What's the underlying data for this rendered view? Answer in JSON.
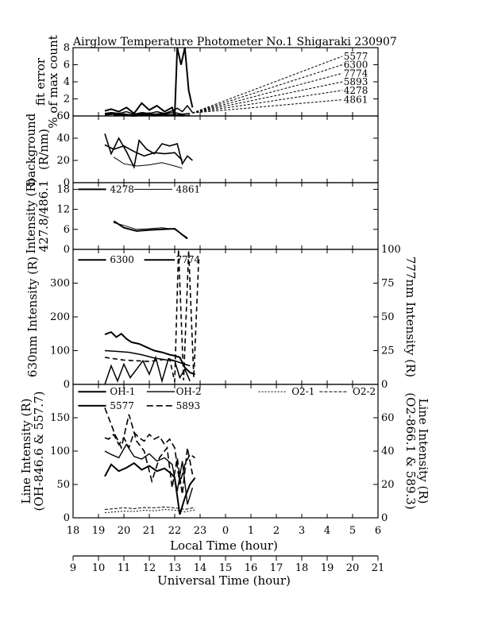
{
  "title": "Airglow Temperature Photometer No.1  Shigaraki  230907",
  "chart_data": [
    {
      "panel": "fit_error",
      "type": "line",
      "ylabel_lines": [
        "fit error",
        "% of max count"
      ],
      "ylim": [
        0,
        8
      ],
      "yticks": [
        0,
        2,
        4,
        6,
        8
      ],
      "series": [
        {
          "name": "5577",
          "x": [
            19.25,
            19.5,
            19.8,
            20.1,
            20.4,
            20.7,
            21.0,
            21.3,
            21.6,
            21.9,
            22.0,
            22.1,
            22.25,
            22.4,
            22.55,
            22.7
          ],
          "y": [
            0.6,
            0.8,
            0.5,
            1.0,
            0.3,
            1.5,
            0.7,
            1.2,
            0.5,
            1.0,
            -1.0,
            8.0,
            6.0,
            8.0,
            3.0,
            1.0
          ]
        },
        {
          "name": "6300",
          "x": [
            19.25,
            19.5,
            19.8,
            20.1,
            20.4,
            20.7,
            21.0,
            21.3,
            21.6,
            21.9,
            22.1,
            22.3,
            22.5,
            22.7
          ],
          "y": [
            0.3,
            0.4,
            0.3,
            0.5,
            0.2,
            0.4,
            0.3,
            0.5,
            0.3,
            0.6,
            0.9,
            0.5,
            1.2,
            0.4
          ]
        },
        {
          "name": "7774",
          "x": [
            19.25,
            19.6,
            20.0,
            20.4,
            20.8,
            21.2,
            21.6,
            22.0,
            22.3,
            22.6
          ],
          "y": [
            0.2,
            0.3,
            0.2,
            0.1,
            0.3,
            0.2,
            0.3,
            0.4,
            0.2,
            0.3
          ]
        },
        {
          "name": "5893",
          "x": [
            19.25,
            19.6,
            20.0,
            20.3,
            20.5,
            20.8,
            21.2,
            21.5,
            21.7,
            22.0,
            22.3,
            22.6
          ],
          "y": [
            0.1,
            0.2,
            0.1,
            0.0,
            -1.5,
            0.2,
            0.1,
            0.3,
            -1.2,
            0.2,
            -1.5,
            0.1
          ]
        },
        {
          "name": "4278",
          "x": [
            19.6,
            20.0,
            20.4,
            20.8,
            21.2,
            21.6,
            22.0,
            22.4
          ],
          "y": [
            0.1,
            0.2,
            0.1,
            0.2,
            0.1,
            0.2,
            0.1,
            0.2
          ]
        },
        {
          "name": "4861",
          "x": [
            19.6,
            20.0,
            20.4,
            20.8,
            21.2,
            21.6,
            22.0,
            22.4
          ],
          "y": [
            0.0,
            0.1,
            0.0,
            0.1,
            0.0,
            0.1,
            0.0,
            0.1
          ]
        }
      ],
      "legend": [
        {
          "label": "5577",
          "y_end": 7.0
        },
        {
          "label": "6300",
          "y_end": 6.0
        },
        {
          "label": "7774",
          "y_end": 5.0
        },
        {
          "label": "5893",
          "y_end": 4.0
        },
        {
          "label": "4278",
          "y_end": 3.0
        },
        {
          "label": "4861",
          "y_end": 1.9
        }
      ]
    },
    {
      "panel": "background",
      "type": "line",
      "ylabel_lines": [
        "background",
        "(R/nm)"
      ],
      "ylim": [
        0,
        60
      ],
      "yticks": [
        0,
        20,
        40,
        60
      ],
      "series": [
        {
          "x": [
            19.25,
            19.5,
            19.8,
            20.1,
            20.4,
            20.6,
            20.9,
            21.2,
            21.5,
            21.8,
            22.1,
            22.3,
            22.5,
            22.7
          ],
          "y": [
            44,
            26,
            40,
            28,
            14,
            38,
            30,
            26,
            35,
            33,
            35,
            17,
            24,
            20
          ]
        },
        {
          "x": [
            19.25,
            19.6,
            20.0,
            20.4,
            20.8,
            21.2,
            21.6,
            22.0,
            22.3
          ],
          "y": [
            34,
            30,
            33,
            28,
            24,
            27,
            26,
            27,
            20
          ]
        },
        {
          "x": [
            19.6,
            20.0,
            20.5,
            21.0,
            21.5,
            22.0,
            22.3
          ],
          "y": [
            23,
            17,
            15,
            16,
            18,
            15,
            13
          ]
        }
      ]
    },
    {
      "panel": "blue_lines",
      "type": "line",
      "ylabel_lines": [
        "Intensity (R)",
        "427.8/486.1"
      ],
      "ylim": [
        0,
        20
      ],
      "yticks": [
        0,
        6,
        12,
        18
      ],
      "series": [
        {
          "name": "4278",
          "x": [
            19.6,
            20.0,
            20.5,
            21.0,
            21.5,
            22.0,
            22.5
          ],
          "y": [
            8.5,
            6.5,
            5.5,
            5.8,
            6.0,
            6.2,
            3.2
          ]
        },
        {
          "name": "4861",
          "x": [
            19.6,
            20.0,
            20.5,
            21.0,
            21.5,
            22.0,
            22.5
          ],
          "y": [
            8.0,
            7.2,
            6.0,
            6.2,
            6.5,
            6.0,
            3.5
          ]
        }
      ]
    },
    {
      "panel": "oi_red_and_7774",
      "type": "line",
      "ylabel_left": "630nm Intensity (R)",
      "ylabel_right": "777nm Intensity (R)",
      "ylim_left": [
        0,
        400
      ],
      "yticks_left": [
        0,
        100,
        200,
        300
      ],
      "ylim_right": [
        0,
        100
      ],
      "yticks_right": [
        0,
        25,
        50,
        75,
        100
      ],
      "series": [
        {
          "name": "6300",
          "x": [
            19.25,
            19.5,
            19.7,
            19.9,
            20.1,
            20.3,
            20.6,
            20.9,
            21.2,
            21.5,
            21.8,
            22.0,
            22.2,
            22.4,
            22.6,
            22.8
          ],
          "y": [
            148,
            155,
            140,
            150,
            135,
            125,
            120,
            110,
            100,
            95,
            88,
            85,
            80,
            50,
            35,
            30
          ]
        },
        {
          "name": "6300b",
          "x": [
            19.25,
            19.7,
            20.2,
            20.7,
            21.2,
            21.7,
            22.0,
            22.3,
            22.6
          ],
          "y": [
            100,
            98,
            95,
            88,
            78,
            72,
            70,
            62,
            55
          ]
        },
        {
          "name": "6300c",
          "x": [
            19.25,
            19.5,
            19.75,
            20.0,
            20.25,
            20.5,
            20.75,
            21.0,
            21.25,
            21.5,
            21.75,
            22.0,
            22.2,
            22.4,
            22.6
          ],
          "y": [
            0,
            55,
            10,
            60,
            20,
            45,
            70,
            30,
            80,
            10,
            75,
            70,
            20,
            45,
            10
          ]
        },
        {
          "name": "7774",
          "axis": "right",
          "x": [
            19.25,
            20.0,
            21.0,
            21.8,
            22.0,
            22.15,
            22.35,
            22.55,
            22.75,
            22.95
          ],
          "y": [
            20,
            18,
            17,
            19,
            2,
            100,
            3,
            99,
            5,
            95
          ]
        }
      ],
      "legend": [
        "6300",
        "7774"
      ]
    },
    {
      "panel": "oh_o2_lines",
      "type": "line",
      "ylabel_left_lines": [
        "Line Intensity (R)",
        "(OH-846.6 & 557.7)"
      ],
      "ylabel_right_lines": [
        "Line Intensity (R)",
        "(O2-866.1 & 589.3)"
      ],
      "ylim_left": [
        0,
        200
      ],
      "yticks_left": [
        0,
        50,
        100,
        150
      ],
      "ylim_right": [
        0,
        80
      ],
      "yticks_right": [
        0,
        20,
        40,
        60
      ],
      "series": [
        {
          "name": "OH-1",
          "x": [
            19.25,
            19.5,
            19.8,
            20.1,
            20.4,
            20.7,
            21.0,
            21.3,
            21.6,
            21.9,
            22.0,
            22.2,
            22.4,
            22.6,
            22.8
          ],
          "y": [
            62,
            80,
            70,
            75,
            82,
            72,
            78,
            70,
            74,
            65,
            60,
            5,
            30,
            50,
            60
          ]
        },
        {
          "name": "OH-2",
          "x": [
            19.25,
            19.5,
            19.8,
            20.1,
            20.4,
            20.7,
            21.0,
            21.3,
            21.6,
            21.9,
            22.1,
            22.3,
            22.5,
            22.7
          ],
          "y": [
            100,
            95,
            90,
            110,
            92,
            88,
            96,
            85,
            90,
            80,
            40,
            85,
            20,
            45
          ]
        },
        {
          "name": "5577",
          "x": [
            19.25,
            19.4,
            19.6,
            19.8,
            20.0,
            20.2,
            20.4,
            20.6,
            20.8,
            21.0,
            21.2,
            21.4,
            21.6,
            21.8,
            22.0,
            22.2,
            22.4,
            22.6,
            22.8
          ],
          "y": [
            120,
            118,
            125,
            110,
            120,
            105,
            128,
            120,
            115,
            125,
            118,
            122,
            110,
            118,
            105,
            50,
            80,
            95,
            90
          ]
        },
        {
          "name": "5893",
          "axis": "right",
          "x": [
            19.25,
            19.45,
            19.65,
            19.9,
            20.2,
            20.5,
            20.8,
            21.1,
            21.4,
            21.7,
            21.9,
            22.1,
            22.3,
            22.5,
            22.7
          ],
          "y": [
            66,
            58,
            50,
            42,
            62,
            46,
            40,
            22,
            36,
            42,
            18,
            36,
            14,
            42,
            26
          ]
        },
        {
          "name": "O2-1",
          "axis": "right",
          "x": [
            19.25,
            19.6,
            20.0,
            20.4,
            20.8,
            21.2,
            21.6,
            22.0,
            22.4,
            22.8
          ],
          "y": [
            3,
            3.5,
            4,
            3.8,
            4.5,
            4.2,
            5,
            4.6,
            3.5,
            4.8
          ]
        },
        {
          "name": "O2-2",
          "axis": "right",
          "x": [
            19.25,
            19.6,
            20.0,
            20.4,
            20.8,
            21.2,
            21.6,
            22.0,
            22.4,
            22.8
          ],
          "y": [
            5,
            5.5,
            6,
            5.5,
            6.2,
            6,
            6.5,
            6,
            5,
            6.3
          ]
        }
      ],
      "legend": [
        "OH-1",
        "OH-2",
        "O2-1",
        "O2-2",
        "5577",
        "5893"
      ]
    }
  ],
  "x_axis_local": {
    "label": "Local Time (hour)",
    "range": [
      18,
      30
    ],
    "tick_labels": [
      "18",
      "19",
      "20",
      "21",
      "22",
      "23",
      "0",
      "1",
      "2",
      "3",
      "4",
      "5",
      "6"
    ]
  },
  "x_axis_ut": {
    "label": "Universal Time (hour)",
    "range": [
      9,
      21
    ],
    "tick_labels": [
      "9",
      "10",
      "11",
      "12",
      "13",
      "14",
      "15",
      "16",
      "17",
      "18",
      "19",
      "20",
      "21"
    ]
  }
}
